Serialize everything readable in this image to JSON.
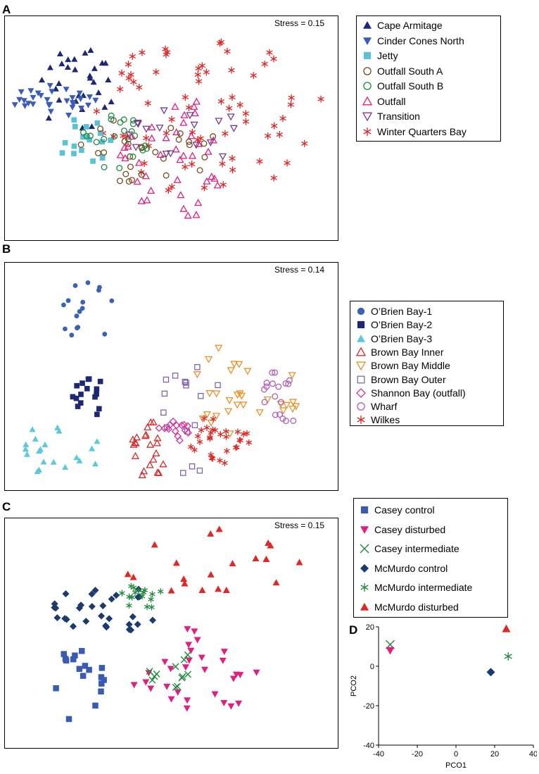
{
  "chart_data": [
    {
      "panel": "A",
      "type": "scatter",
      "annotation": "Stress = 0.15",
      "legend": [
        {
          "name": "Cape Armitage",
          "marker": "triangle-up",
          "color": "#1c2873"
        },
        {
          "name": "Cinder Cones North",
          "marker": "triangle-down",
          "color": "#3b5cb8"
        },
        {
          "name": "Jetty",
          "marker": "square",
          "color": "#5bc2d6"
        },
        {
          "name": "Outfall South A",
          "marker": "circle-open",
          "color": "#7a4a1e"
        },
        {
          "name": "Outfall South B",
          "marker": "circle-open",
          "color": "#1e8a3c"
        },
        {
          "name": "Outfall",
          "marker": "triangle-up-open",
          "color": "#e0207f"
        },
        {
          "name": "Transition",
          "marker": "triangle-down-open",
          "color": "#7a3a8c"
        },
        {
          "name": "Winter Quarters Bay",
          "marker": "asterisk",
          "color": "#e02626"
        }
      ]
    },
    {
      "panel": "B",
      "type": "scatter",
      "annotation": "Stress = 0.14",
      "legend": [
        {
          "name": "O’Brien Bay-1",
          "marker": "circle",
          "color": "#3a62b4"
        },
        {
          "name": "O’Brien Bay-2",
          "marker": "square",
          "color": "#1c2873"
        },
        {
          "name": "O’Brien Bay-3",
          "marker": "triangle-up",
          "color": "#5bc8dc"
        },
        {
          "name": "Brown Bay Inner",
          "marker": "triangle-up-open",
          "color": "#d62c2c"
        },
        {
          "name": "Brown Bay Middle",
          "marker": "triangle-down-open",
          "color": "#e8922a"
        },
        {
          "name": "Brown Bay Outer",
          "marker": "square-open",
          "color": "#7a5aa8"
        },
        {
          "name": "Shannon Bay (outfall)",
          "marker": "diamond-open",
          "color": "#d4329a"
        },
        {
          "name": "Wharf",
          "marker": "circle-open",
          "color": "#b45cb8"
        },
        {
          "name": "Wilkes",
          "marker": "asterisk",
          "color": "#e02626"
        }
      ]
    },
    {
      "panel": "C",
      "type": "scatter",
      "annotation": "Stress = 0.15",
      "legend": [
        {
          "name": "Casey control",
          "marker": "square",
          "color": "#3a5cb0"
        },
        {
          "name": "Casey disturbed",
          "marker": "triangle-down",
          "color": "#e0207f"
        },
        {
          "name": "Casey intermediate",
          "marker": "x",
          "color": "#1e8a3c"
        },
        {
          "name": "McMurdo control",
          "marker": "diamond",
          "color": "#1c3a6e"
        },
        {
          "name": "McMurdo intermediate",
          "marker": "asterisk",
          "color": "#1e8a3c"
        },
        {
          "name": "McMurdo disturbed",
          "marker": "triangle-up",
          "color": "#e02626"
        }
      ]
    },
    {
      "panel": "D",
      "type": "scatter",
      "xlabel": "PCO1",
      "ylabel": "PCO2",
      "xlim": [
        -40,
        40
      ],
      "ylim": [
        -40,
        20
      ],
      "xticks": [
        -40,
        -20,
        0,
        20,
        40
      ],
      "yticks": [
        -40,
        -20,
        0,
        20
      ],
      "points": [
        {
          "series": "Casey intermediate",
          "x": -34,
          "y": 11,
          "marker": "x",
          "color": "#1e8a3c"
        },
        {
          "series": "Casey disturbed",
          "x": -34,
          "y": 8,
          "marker": "triangle-down",
          "color": "#e0207f"
        },
        {
          "series": "McMurdo control",
          "x": 18,
          "y": -3,
          "marker": "diamond",
          "color": "#1c3a6e"
        },
        {
          "series": "McMurdo intermediate",
          "x": 27,
          "y": 5,
          "marker": "asterisk",
          "color": "#1e8a3c"
        },
        {
          "series": "McMurdo disturbed",
          "x": 26,
          "y": 19,
          "marker": "triangle-up",
          "color": "#e02626"
        }
      ]
    }
  ]
}
